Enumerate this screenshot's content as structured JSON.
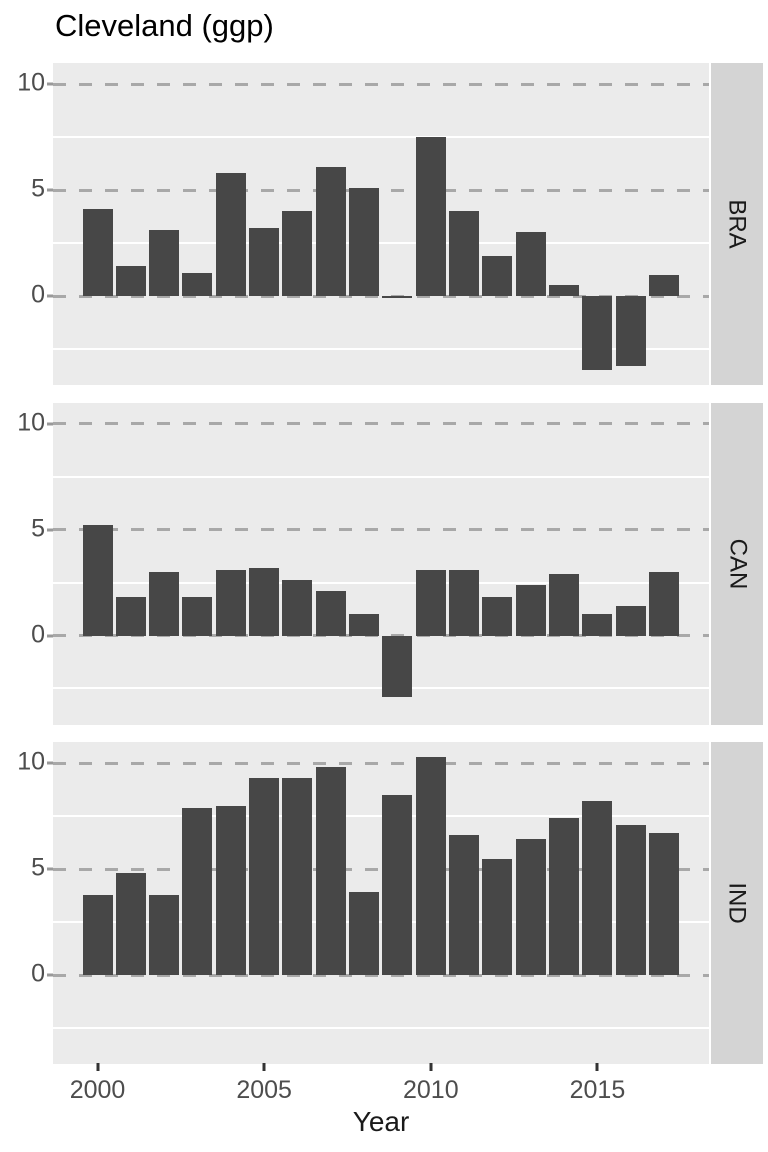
{
  "title": "Cleveland (ggp)",
  "axes": {
    "x_title": "Year",
    "x_tick_labels": [
      "2000",
      "2005",
      "2010",
      "2015"
    ],
    "x_tick_years": [
      2000,
      2005,
      2010,
      2015
    ],
    "y_tick_labels": [
      "10",
      "5",
      "0"
    ],
    "y_tick_values": [
      10,
      5,
      0
    ]
  },
  "facets": [
    "BRA",
    "CAN",
    "IND"
  ],
  "chart_data": {
    "type": "bar",
    "title": "Cleveland (ggp)",
    "xlabel": "Year",
    "ylabel": "",
    "legend": "none",
    "facet_strip_position": "right",
    "grid": {
      "major_y": "dashed gray",
      "minor_y": "solid white",
      "vertical": "none"
    },
    "x": [
      2000,
      2001,
      2002,
      2003,
      2004,
      2005,
      2006,
      2007,
      2008,
      2009,
      2010,
      2011,
      2012,
      2013,
      2014,
      2015,
      2016,
      2017
    ],
    "ylim": [
      -4.2,
      11.0
    ],
    "y_major": [
      0,
      5,
      10
    ],
    "y_minor": [
      -2.5,
      2.5,
      7.5
    ],
    "series": [
      {
        "name": "BRA",
        "values": [
          4.1,
          1.4,
          3.1,
          1.1,
          5.8,
          3.2,
          4.0,
          6.1,
          5.1,
          -0.1,
          7.5,
          4.0,
          1.9,
          3.0,
          0.5,
          -3.5,
          -3.3,
          1.0
        ]
      },
      {
        "name": "CAN",
        "values": [
          5.2,
          1.8,
          3.0,
          1.8,
          3.1,
          3.2,
          2.6,
          2.1,
          1.0,
          -2.9,
          3.1,
          3.1,
          1.8,
          2.4,
          2.9,
          1.0,
          1.4,
          3.0
        ]
      },
      {
        "name": "IND",
        "values": [
          3.8,
          4.8,
          3.8,
          7.9,
          8.0,
          9.3,
          9.3,
          9.8,
          3.9,
          8.5,
          10.3,
          6.6,
          5.5,
          6.4,
          7.4,
          8.2,
          7.1,
          6.7
        ]
      }
    ]
  },
  "colors": {
    "bar": "#474747",
    "panel_bg": "#EBEBEB",
    "strip_bg": "#D4D4D4",
    "major_grid": "#A8A8A8",
    "minor_grid": "#FFFFFF",
    "axis_text": "#4D4D4D",
    "title_text": "#000000"
  }
}
